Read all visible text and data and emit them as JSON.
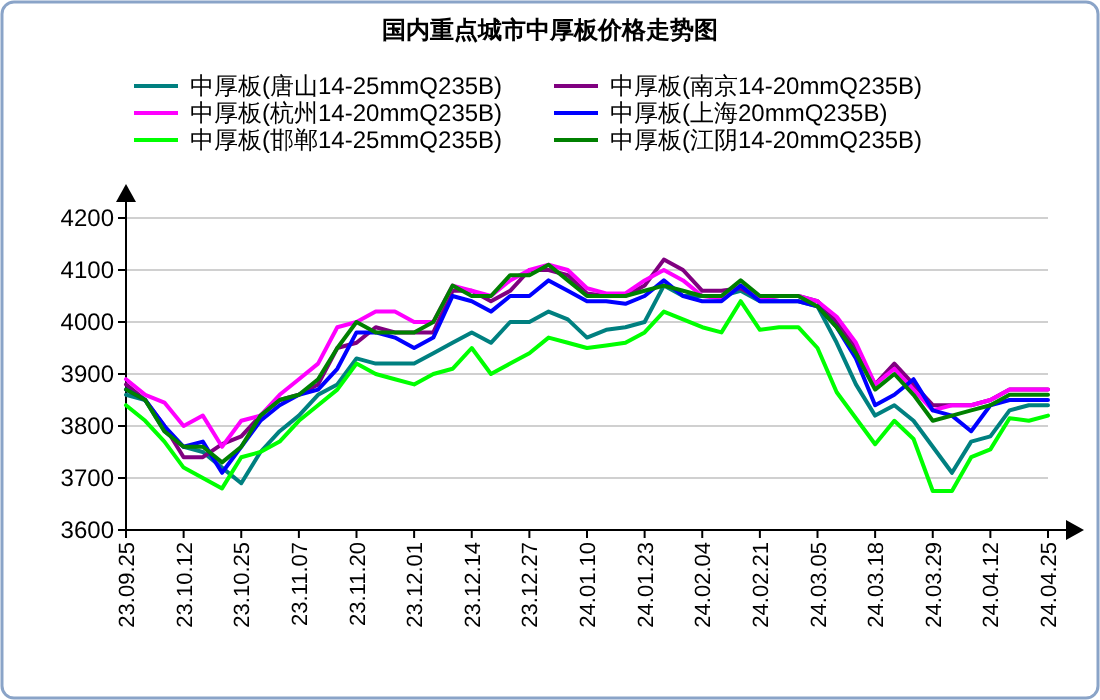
{
  "chart_data": {
    "type": "line",
    "title": "国内重点城市中厚板价格走势图",
    "categories": [
      "23.09.25",
      null,
      null,
      "23.10.12",
      null,
      null,
      "23.10.25",
      null,
      null,
      "23.11.07",
      null,
      null,
      "23.11.20",
      null,
      null,
      "23.12.01",
      null,
      null,
      "23.12.14",
      null,
      null,
      "23.12.27",
      null,
      null,
      "24.01.10",
      null,
      null,
      "24.01.23",
      null,
      null,
      "24.02.04",
      null,
      null,
      "24.02.21",
      null,
      null,
      "24.03.05",
      null,
      null,
      "24.03.18",
      null,
      null,
      "24.03.29",
      null,
      null,
      "24.04.12",
      null,
      null,
      "24.04.25"
    ],
    "series": [
      {
        "name": "中厚板(唐山14-25mmQ235B)",
        "color": "#008080",
        "values": [
          3860,
          3850,
          3790,
          3760,
          3750,
          3720,
          3690,
          3750,
          3790,
          3820,
          3860,
          3880,
          3930,
          3920,
          3920,
          3920,
          3940,
          3960,
          3980,
          3960,
          4000,
          4000,
          4020,
          4005,
          3970,
          3985,
          3990,
          4000,
          4070,
          4050,
          4050,
          4050,
          4060,
          4040,
          4040,
          4040,
          4030,
          3960,
          3880,
          3820,
          3840,
          3810,
          3760,
          3710,
          3770,
          3780,
          3830,
          3840,
          3840
        ]
      },
      {
        "name": "中厚板(南京14-20mmQ235B)",
        "color": "#800080",
        "values": [
          3880,
          3850,
          3800,
          3740,
          3740,
          3765,
          3780,
          3820,
          3850,
          3860,
          3880,
          3950,
          3960,
          3990,
          3980,
          3980,
          3980,
          4060,
          4060,
          4040,
          4060,
          4100,
          4100,
          4090,
          4055,
          4050,
          4050,
          4070,
          4120,
          4100,
          4060,
          4060,
          4065,
          4045,
          4050,
          4050,
          4040,
          4000,
          3950,
          3880,
          3920,
          3880,
          3840,
          3840,
          3840,
          3850,
          3870,
          3870,
          3870
        ]
      },
      {
        "name": "中厚板(杭州14-20mmQ235B)",
        "color": "#ff00ff",
        "values": [
          3890,
          3860,
          3845,
          3800,
          3820,
          3760,
          3810,
          3820,
          3860,
          3890,
          3920,
          3990,
          4000,
          4020,
          4020,
          4000,
          4000,
          4070,
          4060,
          4050,
          4080,
          4100,
          4110,
          4100,
          4065,
          4055,
          4055,
          4080,
          4100,
          4080,
          4050,
          4045,
          4070,
          4045,
          4050,
          4050,
          4040,
          4010,
          3960,
          3880,
          3910,
          3870,
          3830,
          3840,
          3840,
          3850,
          3870,
          3870,
          3870
        ]
      },
      {
        "name": "中厚板(上海20mmQ235B)",
        "color": "#0000ff",
        "values": [
          3870,
          3850,
          3800,
          3760,
          3770,
          3710,
          3760,
          3810,
          3840,
          3860,
          3870,
          3910,
          3980,
          3980,
          3970,
          3950,
          3970,
          4050,
          4040,
          4020,
          4050,
          4050,
          4080,
          4060,
          4040,
          4040,
          4035,
          4050,
          4080,
          4050,
          4040,
          4040,
          4070,
          4040,
          4040,
          4040,
          4030,
          3990,
          3930,
          3840,
          3860,
          3890,
          3830,
          3820,
          3790,
          3840,
          3850,
          3850,
          3850
        ]
      },
      {
        "name": "中厚板(邯郸14-25mmQ235B)",
        "color": "#00ff00",
        "values": [
          3840,
          3810,
          3770,
          3720,
          3700,
          3680,
          3740,
          3750,
          3770,
          3810,
          3840,
          3870,
          3920,
          3900,
          3890,
          3880,
          3900,
          3910,
          3950,
          3900,
          3920,
          3940,
          3970,
          3960,
          3950,
          3955,
          3960,
          3980,
          4020,
          4005,
          3990,
          3980,
          4040,
          3985,
          3990,
          3990,
          3950,
          3865,
          3815,
          3765,
          3810,
          3775,
          3675,
          3675,
          3740,
          3755,
          3815,
          3810,
          3820
        ]
      },
      {
        "name": "中厚板(江阴14-20mmQ235B)",
        "color": "#008000",
        "values": [
          3870,
          3850,
          3790,
          3760,
          3760,
          3730,
          3760,
          3820,
          3850,
          3860,
          3890,
          3950,
          4000,
          3980,
          3980,
          3980,
          4000,
          4070,
          4050,
          4050,
          4090,
          4090,
          4110,
          4080,
          4050,
          4050,
          4050,
          4060,
          4070,
          4060,
          4050,
          4050,
          4080,
          4050,
          4050,
          4050,
          4030,
          3990,
          3940,
          3870,
          3900,
          3860,
          3810,
          3820,
          3830,
          3840,
          3860,
          3860,
          3860
        ]
      }
    ],
    "ylim": [
      3600,
      4200
    ],
    "yticks": [
      3600,
      3700,
      3800,
      3900,
      4000,
      4100,
      4200
    ],
    "grid": "y",
    "legend": "top"
  }
}
